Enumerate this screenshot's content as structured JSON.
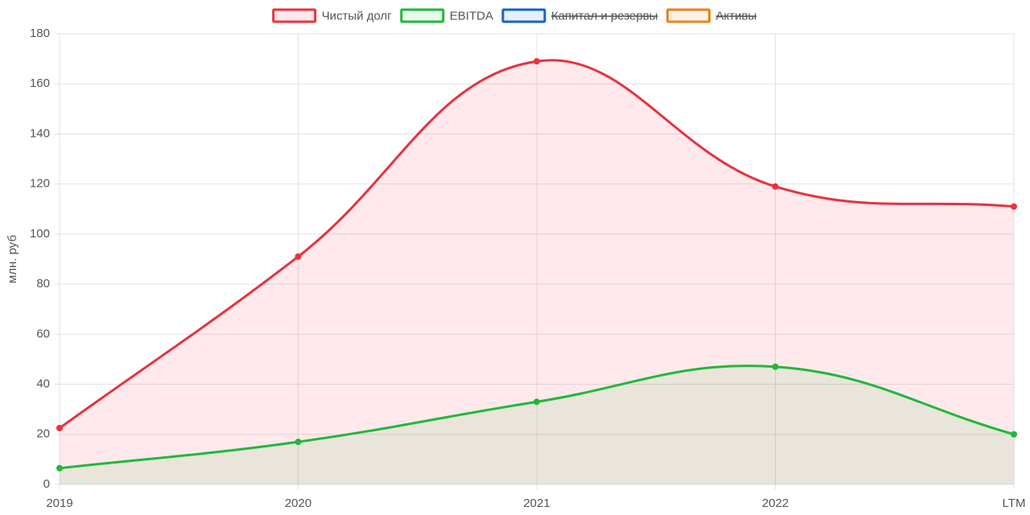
{
  "chart_data": {
    "type": "line",
    "fill": true,
    "y_label": "млн. руб",
    "categories": [
      "2019",
      "2020",
      "2021",
      "2022",
      "LTM"
    ],
    "series": [
      {
        "name": "Чистый долг",
        "color": "#e8323f",
        "fill_color": "rgba(255, 40, 70, 0.1)",
        "hidden": false,
        "values": [
          22.5,
          91,
          169,
          119,
          111
        ]
      },
      {
        "name": "EBITDA",
        "color": "#20b83a",
        "fill_color": "rgba(40, 200, 60, 0.1)",
        "hidden": false,
        "values": [
          6.5,
          17,
          33,
          47,
          20
        ]
      },
      {
        "name": "Капитал и резервы",
        "color": "#1565c0",
        "fill_color": "rgba(21, 101, 192, 0.1)",
        "hidden": true,
        "values": [
          null,
          null,
          null,
          null,
          null
        ]
      },
      {
        "name": "Активы",
        "color": "#e8821a",
        "fill_color": "rgba(232, 130, 26, 0.1)",
        "hidden": true,
        "values": [
          null,
          null,
          null,
          null,
          null
        ]
      }
    ],
    "ylim": [
      0,
      180
    ],
    "yticks": [
      0,
      20,
      40,
      60,
      80,
      100,
      120,
      140,
      160,
      180
    ],
    "grid": true,
    "legend": "top"
  }
}
